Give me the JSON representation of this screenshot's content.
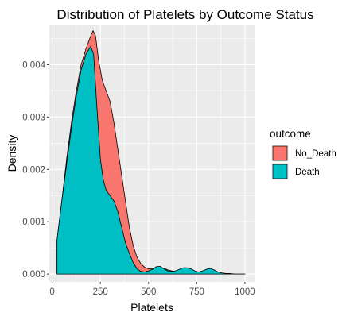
{
  "chart_data": {
    "type": "area",
    "title": "Distribution of Platelets by Outcome Status",
    "xlabel": "Platelets",
    "ylabel": "Density",
    "xlim": [
      -15,
      1050
    ],
    "ylim": [
      -0.00015,
      0.00475
    ],
    "x_ticks": [
      0,
      250,
      500,
      750,
      1000
    ],
    "x_tick_labels": [
      "0",
      "250",
      "500",
      "750",
      "1000"
    ],
    "y_ticks": [
      0,
      0.001,
      0.002,
      0.003,
      0.004
    ],
    "y_tick_labels": [
      "0.000",
      "0.001",
      "0.002",
      "0.003",
      "0.004"
    ],
    "grid": true,
    "legend": {
      "title": "outcome",
      "position": "right"
    },
    "series": [
      {
        "name": "No_Death",
        "color": "#F8766D",
        "x": [
          25,
          50,
          75,
          100,
          125,
          150,
          175,
          200,
          212,
          225,
          240,
          260,
          280,
          300,
          320,
          340,
          360,
          380,
          400,
          420,
          440,
          460,
          480,
          500,
          520,
          540,
          560,
          580,
          600,
          620,
          640,
          660,
          680,
          700,
          720,
          740,
          760,
          780,
          800,
          820,
          840,
          860,
          880,
          900,
          920,
          950,
          1000
        ],
        "values": [
          0.00065,
          0.0014,
          0.0022,
          0.0029,
          0.0035,
          0.004,
          0.0043,
          0.00455,
          0.00465,
          0.00455,
          0.0041,
          0.0037,
          0.0035,
          0.0033,
          0.0029,
          0.0024,
          0.0019,
          0.0014,
          0.0009,
          0.00055,
          0.00032,
          0.0002,
          0.00013,
          0.0001,
          0.0001,
          0.00012,
          0.00013,
          0.00011,
          8e-05,
          6e-05,
          5e-05,
          4e-05,
          4e-05,
          4e-05,
          4e-05,
          4e-05,
          4e-05,
          4e-05,
          3e-05,
          3e-05,
          2e-05,
          2e-05,
          2e-05,
          1e-05,
          1e-05,
          0.0,
          0.0
        ]
      },
      {
        "name": "Death",
        "color": "#00BFC4",
        "x": [
          25,
          50,
          75,
          100,
          125,
          150,
          175,
          200,
          215,
          230,
          250,
          265,
          280,
          300,
          320,
          340,
          360,
          380,
          400,
          420,
          440,
          460,
          480,
          500,
          520,
          540,
          560,
          580,
          600,
          620,
          640,
          660,
          680,
          700,
          720,
          740,
          760,
          780,
          800,
          820,
          840,
          860,
          880,
          900,
          920,
          950,
          1000
        ],
        "values": [
          0.00065,
          0.0014,
          0.0021,
          0.0028,
          0.0034,
          0.0039,
          0.0042,
          0.00435,
          0.0042,
          0.0033,
          0.0022,
          0.0018,
          0.0016,
          0.0015,
          0.0014,
          0.0012,
          0.0009,
          0.0006,
          0.0004,
          0.00022,
          0.0001,
          5e-05,
          4e-05,
          6e-05,
          9e-05,
          0.00014,
          0.00015,
          0.0001,
          6e-05,
          5e-05,
          6e-05,
          9e-05,
          0.00012,
          0.00012,
          0.0001,
          6e-05,
          4e-05,
          6e-05,
          9e-05,
          0.00011,
          8e-05,
          4e-05,
          2e-05,
          1e-05,
          0.0,
          0.0,
          0.0
        ]
      }
    ]
  }
}
